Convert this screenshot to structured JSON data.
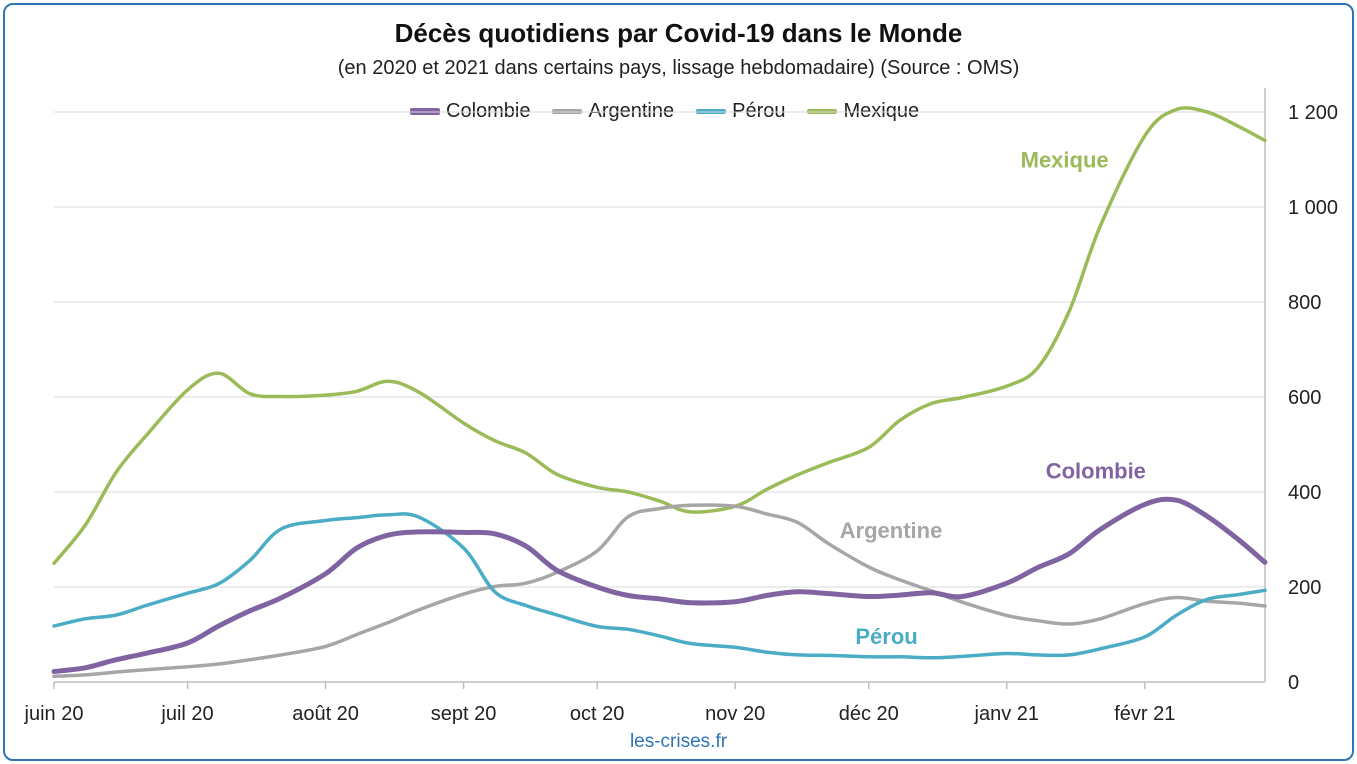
{
  "chart_data": {
    "type": "line",
    "title": "Décès quotidiens par Covid-19 dans le Monde",
    "subtitle": "(en 2020 et 2021 dans certains pays, lissage hebdomadaire) (Source : OMS)",
    "xlabel": "",
    "ylabel": "",
    "ylim": [
      0,
      1200
    ],
    "yticks": [
      0,
      200,
      400,
      600,
      800,
      1000,
      1200
    ],
    "ytick_labels": [
      "0",
      "200",
      "400",
      "600",
      "800",
      "1 000",
      "1 200"
    ],
    "y_axis_position": "right",
    "grid": true,
    "legend_position": "top",
    "x_range": [
      "2020-06-01",
      "2021-02-28"
    ],
    "x_categories": [
      "juin 20",
      "juil 20",
      "août 20",
      "sept 20",
      "oct 20",
      "nov 20",
      "déc 20",
      "janv 21",
      "févr 21"
    ],
    "x_category_dates": [
      "2020-06-01",
      "2020-07-01",
      "2020-08-01",
      "2020-09-01",
      "2020-10-01",
      "2020-11-01",
      "2020-12-01",
      "2021-01-01",
      "2021-02-01"
    ],
    "series": [
      {
        "name": "Colombie",
        "color": "#8064a2",
        "x": [
          "2020-06-01",
          "2020-06-08",
          "2020-06-15",
          "2020-06-22",
          "2020-07-01",
          "2020-07-08",
          "2020-07-15",
          "2020-07-22",
          "2020-08-01",
          "2020-08-08",
          "2020-08-15",
          "2020-08-22",
          "2020-09-01",
          "2020-09-08",
          "2020-09-15",
          "2020-09-22",
          "2020-10-01",
          "2020-10-08",
          "2020-10-15",
          "2020-10-22",
          "2020-11-01",
          "2020-11-08",
          "2020-11-15",
          "2020-11-22",
          "2020-12-01",
          "2020-12-08",
          "2020-12-15",
          "2020-12-22",
          "2021-01-01",
          "2021-01-08",
          "2021-01-15",
          "2021-01-22",
          "2021-02-01",
          "2021-02-08",
          "2021-02-15",
          "2021-02-22",
          "2021-02-28"
        ],
        "values": [
          22,
          30,
          47,
          61,
          82,
          118,
          150,
          177,
          228,
          282,
          309,
          316,
          315,
          312,
          286,
          235,
          200,
          182,
          175,
          167,
          169,
          182,
          190,
          186,
          180,
          183,
          188,
          180,
          208,
          241,
          270,
          321,
          374,
          383,
          349,
          300,
          252
        ]
      },
      {
        "name": "Argentine",
        "color": "#a6a6a6",
        "x": [
          "2020-06-01",
          "2020-06-08",
          "2020-06-15",
          "2020-06-22",
          "2020-07-01",
          "2020-07-08",
          "2020-07-15",
          "2020-07-22",
          "2020-08-01",
          "2020-08-08",
          "2020-08-15",
          "2020-08-22",
          "2020-09-01",
          "2020-09-08",
          "2020-09-15",
          "2020-09-22",
          "2020-10-01",
          "2020-10-08",
          "2020-10-15",
          "2020-10-22",
          "2020-11-01",
          "2020-11-08",
          "2020-11-15",
          "2020-11-22",
          "2020-12-01",
          "2020-12-08",
          "2020-12-15",
          "2020-12-22",
          "2021-01-01",
          "2021-01-08",
          "2021-01-15",
          "2021-01-22",
          "2021-02-01",
          "2021-02-08",
          "2021-02-15",
          "2021-02-22",
          "2021-02-28"
        ],
        "values": [
          12,
          15,
          21,
          26,
          32,
          38,
          47,
          57,
          75,
          100,
          125,
          152,
          185,
          201,
          208,
          231,
          276,
          348,
          365,
          372,
          370,
          354,
          336,
          291,
          242,
          215,
          192,
          168,
          140,
          129,
          122,
          133,
          165,
          178,
          170,
          166,
          160
        ]
      },
      {
        "name": "Pérou",
        "color": "#4bacc6",
        "x": [
          "2020-06-01",
          "2020-06-08",
          "2020-06-15",
          "2020-06-22",
          "2020-07-01",
          "2020-07-08",
          "2020-07-15",
          "2020-07-22",
          "2020-08-01",
          "2020-08-08",
          "2020-08-15",
          "2020-08-22",
          "2020-09-01",
          "2020-09-08",
          "2020-09-15",
          "2020-09-22",
          "2020-10-01",
          "2020-10-08",
          "2020-10-15",
          "2020-10-22",
          "2020-11-01",
          "2020-11-08",
          "2020-11-15",
          "2020-11-22",
          "2020-12-01",
          "2020-12-08",
          "2020-12-15",
          "2020-12-22",
          "2021-01-01",
          "2021-01-08",
          "2021-01-15",
          "2021-01-22",
          "2021-02-01",
          "2021-02-08",
          "2021-02-15",
          "2021-02-22",
          "2021-02-28"
        ],
        "values": [
          118,
          133,
          141,
          162,
          187,
          207,
          256,
          322,
          340,
          346,
          352,
          347,
          282,
          190,
          161,
          141,
          117,
          111,
          97,
          81,
          73,
          63,
          57,
          56,
          53,
          53,
          51,
          54,
          60,
          57,
          57,
          70,
          95,
          140,
          174,
          184,
          193
        ]
      },
      {
        "name": "Mexique",
        "color": "#9bbb59",
        "x": [
          "2020-06-01",
          "2020-06-08",
          "2020-06-15",
          "2020-06-22",
          "2020-07-01",
          "2020-07-08",
          "2020-07-15",
          "2020-07-22",
          "2020-08-01",
          "2020-08-08",
          "2020-08-15",
          "2020-08-22",
          "2020-09-01",
          "2020-09-08",
          "2020-09-15",
          "2020-09-22",
          "2020-10-01",
          "2020-10-08",
          "2020-10-15",
          "2020-10-22",
          "2020-11-01",
          "2020-11-08",
          "2020-11-15",
          "2020-11-22",
          "2020-12-01",
          "2020-12-08",
          "2020-12-15",
          "2020-12-22",
          "2021-01-01",
          "2021-01-08",
          "2021-01-15",
          "2021-01-22",
          "2021-02-01",
          "2021-02-08",
          "2021-02-15",
          "2021-02-22",
          "2021-02-28"
        ],
        "values": [
          250,
          330,
          442,
          522,
          615,
          650,
          607,
          601,
          604,
          612,
          633,
          610,
          545,
          508,
          482,
          437,
          410,
          400,
          381,
          358,
          370,
          405,
          436,
          462,
          494,
          551,
          586,
          599,
          623,
          662,
          780,
          960,
          1150,
          1205,
          1200,
          1170,
          1140
        ]
      }
    ],
    "annotations": [
      {
        "text": "Mexique",
        "series": "Mexique",
        "color": "#9bbb59",
        "x": "2021-01-14",
        "y": 1100
      },
      {
        "text": "Colombie",
        "series": "Colombie",
        "color": "#8064a2",
        "x": "2021-01-21",
        "y": 445
      },
      {
        "text": "Argentine",
        "series": "Argentine",
        "color": "#a6a6a6",
        "x": "2020-12-06",
        "y": 320
      },
      {
        "text": "Pérou",
        "series": "Pérou",
        "color": "#4bacc6",
        "x": "2020-12-05",
        "y": 97
      }
    ],
    "source_note": "les-crises.fr"
  }
}
